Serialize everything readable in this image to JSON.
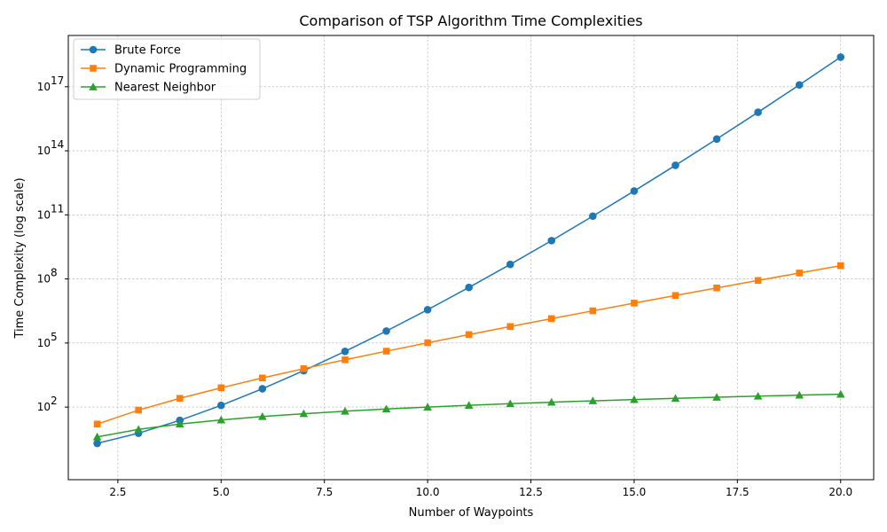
{
  "chart_data": {
    "type": "line",
    "title": "Comparison of TSP Algorithm Time Complexities",
    "xlabel": "Number of Waypoints",
    "ylabel": "Time Complexity (log scale)",
    "x_scale": "linear",
    "y_scale": "log",
    "xlim": [
      1.3,
      20.8
    ],
    "ylim_log10": [
      -1.4,
      19.4
    ],
    "x_ticks": [
      2.5,
      5.0,
      7.5,
      10.0,
      12.5,
      15.0,
      17.5,
      20.0
    ],
    "x_tick_labels": [
      "2.5",
      "5.0",
      "7.5",
      "10.0",
      "12.5",
      "15.0",
      "17.5",
      "20.0"
    ],
    "y_ticks_exp": [
      2,
      5,
      8,
      11,
      14,
      17
    ],
    "y_tick_base": "10",
    "grid": true,
    "legend_position": "upper-left",
    "x": [
      2,
      3,
      4,
      5,
      6,
      7,
      8,
      9,
      10,
      11,
      12,
      13,
      14,
      15,
      16,
      17,
      18,
      19,
      20
    ],
    "series": [
      {
        "name": "Brute Force",
        "color": "#1f77b4",
        "marker": "circle",
        "values": [
          2,
          6,
          24,
          120,
          720,
          5040,
          40320,
          362880,
          3628800,
          39916800,
          479001600,
          6227020800,
          87178291200,
          1307674368000,
          20922789888000,
          355687428096000,
          6402373705728000,
          121645100408832000,
          2432902008176640000
        ]
      },
      {
        "name": "Dynamic Programming",
        "color": "#ff7f0e",
        "marker": "square",
        "values": [
          16,
          72,
          256,
          800,
          2304,
          6272,
          16384,
          41472,
          102400,
          247808,
          589824,
          1384448,
          3211264,
          7372800,
          16777216,
          37879808,
          84934656,
          189267968,
          419430400
        ]
      },
      {
        "name": "Nearest Neighbor",
        "color": "#2ca02c",
        "marker": "triangle",
        "values": [
          4,
          9,
          16,
          25,
          36,
          49,
          64,
          81,
          100,
          121,
          144,
          169,
          196,
          225,
          256,
          289,
          324,
          361,
          400
        ]
      }
    ]
  }
}
